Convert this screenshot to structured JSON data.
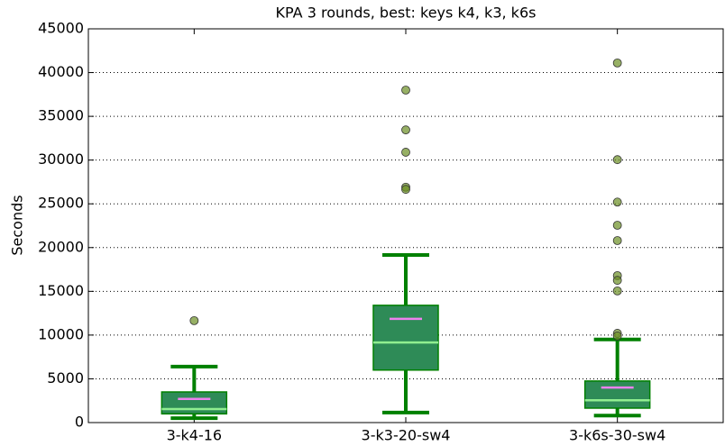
{
  "chart_data": {
    "type": "box",
    "title": "KPA 3 rounds, best: keys k4, k3, k6s",
    "y_label": "Seconds",
    "ylim": [
      0,
      45000
    ],
    "yticks": [
      0,
      5000,
      10000,
      15000,
      20000,
      25000,
      30000,
      35000,
      40000,
      45000
    ],
    "grid": true,
    "box_color": "#2e8b57",
    "edge_color": "#008000",
    "median_color": "#90ee90",
    "mean_color": "#ee82ee",
    "outlier_color": "#6b8e23",
    "categories": [
      "3-k4-16",
      "3-k3-20-sw4",
      "3-k6s-30-sw4"
    ],
    "boxes": [
      {
        "min": 500,
        "q1": 1000,
        "median": 1550,
        "q3": 3500,
        "max": 6400,
        "mean": 2700,
        "outliers": [
          11650
        ]
      },
      {
        "min": 1150,
        "q1": 6000,
        "median": 9150,
        "q3": 13400,
        "max": 19150,
        "mean": 11850,
        "outliers": [
          38000,
          33450,
          30900,
          26900,
          26650
        ]
      },
      {
        "min": 800,
        "q1": 1650,
        "median": 2550,
        "q3": 4750,
        "max": 9500,
        "mean": 4000,
        "outliers": [
          41100,
          30050,
          25200,
          22550,
          20800,
          16800,
          16250,
          15050,
          10200,
          9900
        ]
      }
    ]
  }
}
